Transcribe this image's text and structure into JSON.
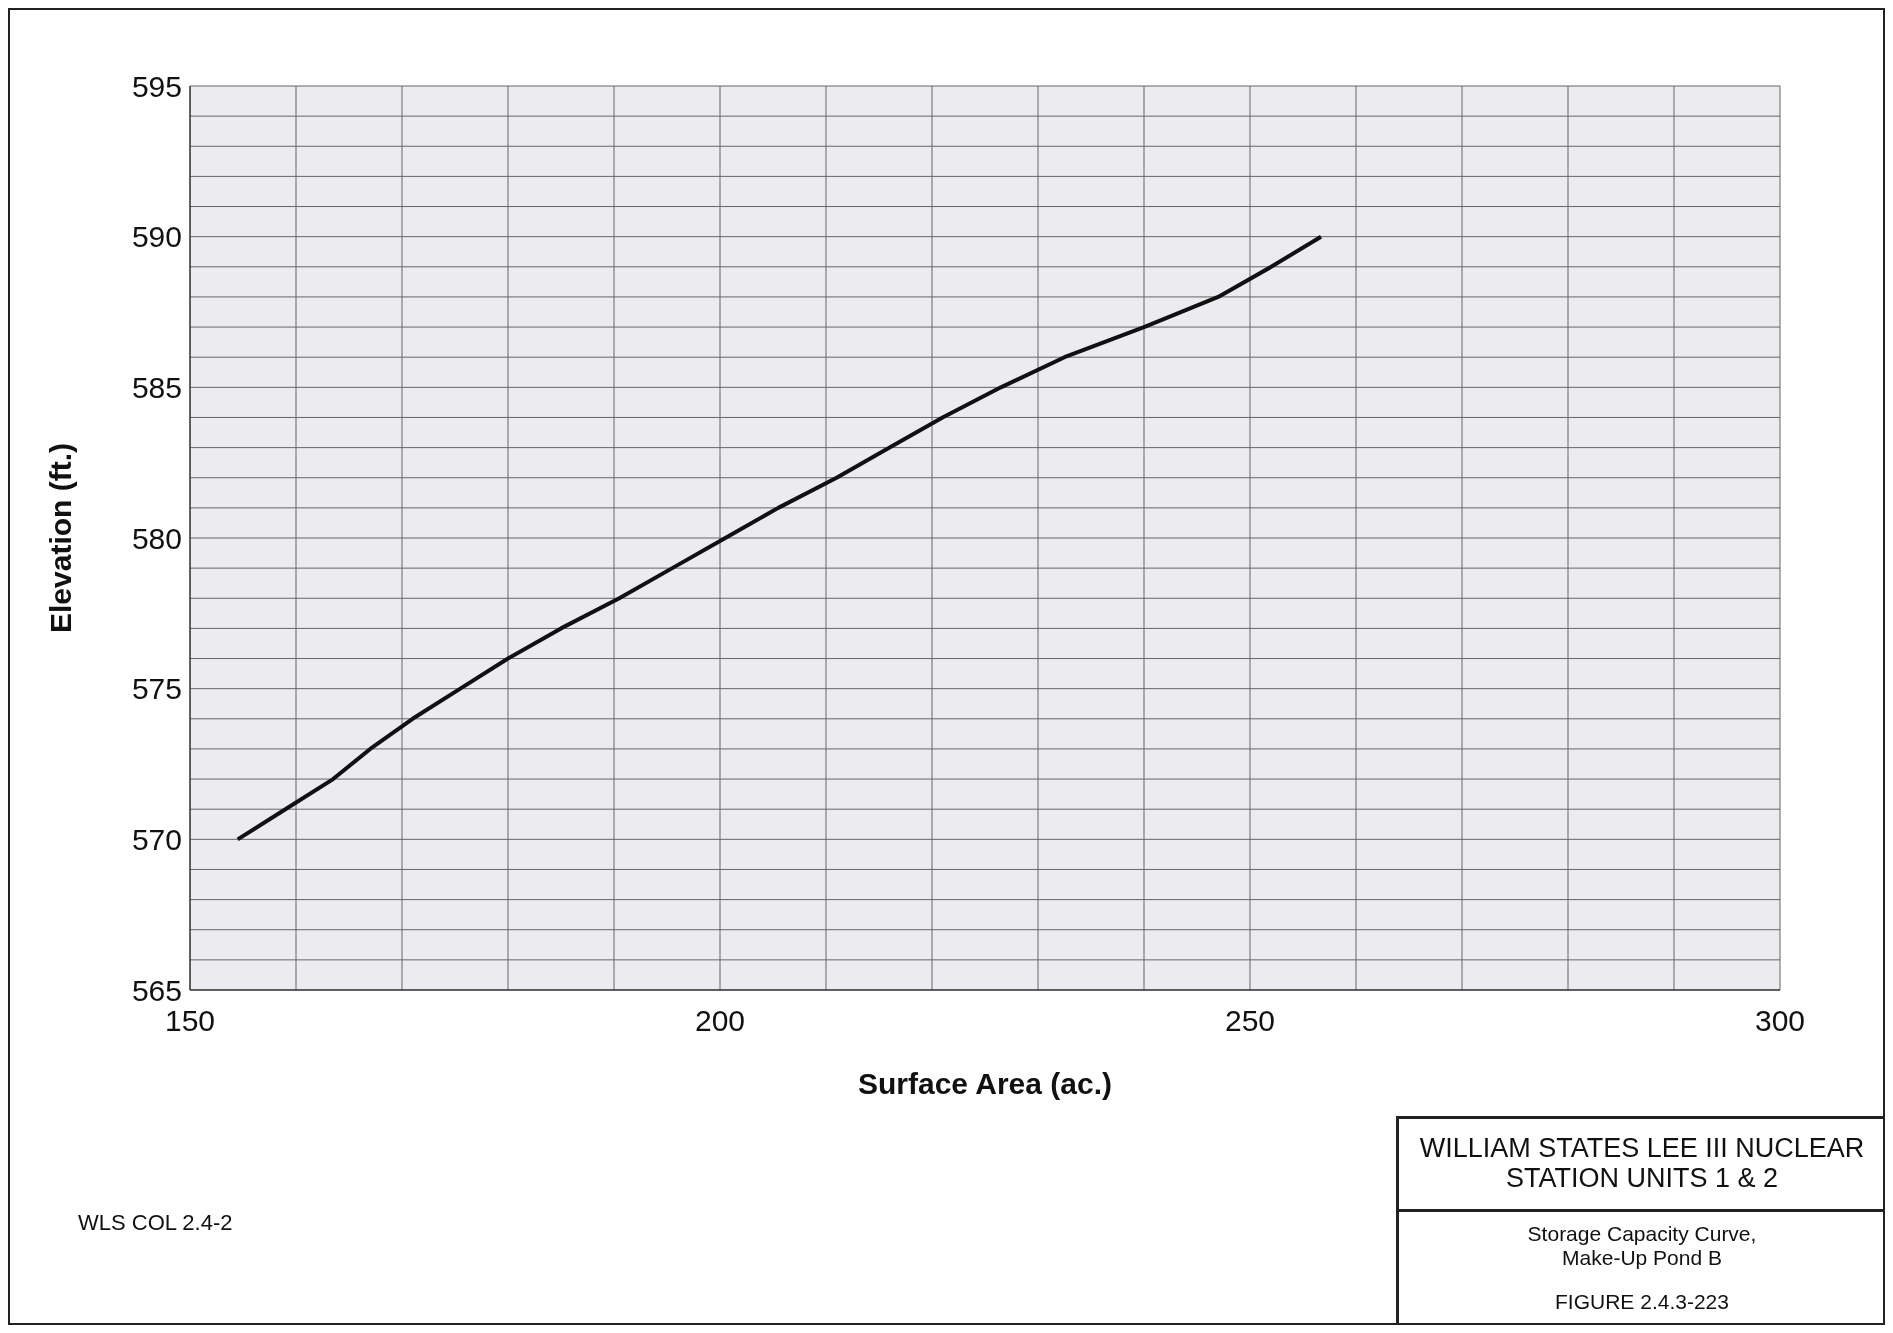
{
  "chart_data": {
    "type": "line",
    "xlabel": "Surface Area (ac.)",
    "ylabel": "Elevation (ft.)",
    "x": [
      154.5,
      159,
      163.5,
      167,
      171,
      175.5,
      180,
      185,
      190.5,
      195.5,
      200.5,
      205.5,
      211,
      216,
      221,
      226.5,
      232.5,
      240,
      247,
      252,
      256.7
    ],
    "series": [
      {
        "color": "#111111",
        "values": [
          570,
          571,
          572,
          573,
          574,
          575,
          576,
          577,
          578,
          579,
          580,
          581,
          582,
          583,
          584,
          585,
          586,
          587,
          588,
          589,
          590
        ]
      }
    ],
    "xlim": [
      150,
      300
    ],
    "xticks": [
      150,
      {
        "value": 160,
        "label": null
      },
      {
        "value": 170,
        "label": null
      },
      {
        "value": 180,
        "label": null
      },
      {
        "value": 190,
        "label": null
      },
      200,
      {
        "value": 210,
        "label": null
      },
      {
        "value": 220,
        "label": null
      },
      {
        "value": 230,
        "label": null
      },
      {
        "value": 240,
        "label": null
      },
      250,
      {
        "value": 260,
        "label": null
      },
      {
        "value": 270,
        "label": null
      },
      {
        "value": 280,
        "label": null
      },
      {
        "value": 290,
        "label": null
      },
      300
    ],
    "ylim": [
      565,
      595
    ],
    "yticks": [
      565,
      {
        "value": 566,
        "label": null
      },
      {
        "value": 567,
        "label": null
      },
      {
        "value": 568,
        "label": null
      },
      {
        "value": 569,
        "label": null
      },
      570,
      {
        "value": 571,
        "label": null
      },
      {
        "value": 572,
        "label": null
      },
      {
        "value": 573,
        "label": null
      },
      {
        "value": 574,
        "label": null
      },
      575,
      {
        "value": 576,
        "label": null
      },
      {
        "value": 577,
        "label": null
      },
      {
        "value": 578,
        "label": null
      },
      {
        "value": 579,
        "label": null
      },
      580,
      {
        "value": 581,
        "label": null
      },
      {
        "value": 582,
        "label": null
      },
      {
        "value": 583,
        "label": null
      },
      {
        "value": 584,
        "label": null
      },
      585,
      {
        "value": 586,
        "label": null
      },
      {
        "value": 587,
        "label": null
      },
      {
        "value": 588,
        "label": null
      },
      {
        "value": 589,
        "label": null
      },
      590,
      {
        "value": 591,
        "label": null
      },
      {
        "value": 592,
        "label": null
      },
      {
        "value": 593,
        "label": null
      },
      {
        "value": 594,
        "label": null
      },
      595
    ],
    "grid": true,
    "marker": "none",
    "line_style": "solid",
    "legend": false,
    "annotations": [
      "WILLIAM STATES LEE III NUCLEAR STATION UNITS 1 & 2",
      "Storage Capacity Curve, Make-Up Pond B",
      "FIGURE 2.4.3-223",
      "WLS COL 2.4-2"
    ]
  }
}
